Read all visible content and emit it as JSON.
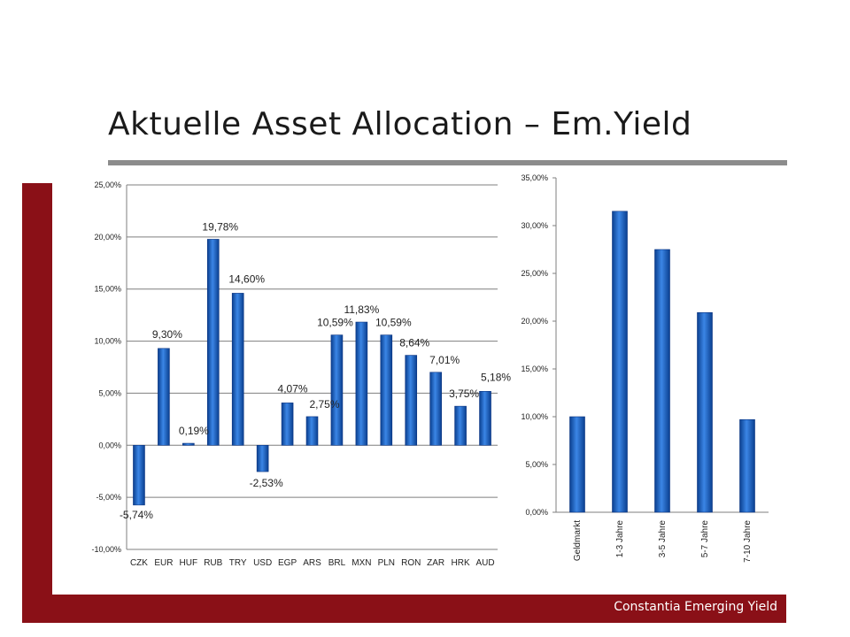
{
  "slide": {
    "title": "Aktuelle Asset Allocation – Em.Yield",
    "footer": "Constantia Emerging Yield",
    "accent_color": "#8a1017",
    "rule_color": "#8c8c8c"
  },
  "chart_data": [
    {
      "type": "bar",
      "title": "",
      "categories": [
        "CZK",
        "EUR",
        "HUF",
        "RUB",
        "TRY",
        "USD",
        "EGP",
        "ARS",
        "BRL",
        "MXN",
        "PLN",
        "RON",
        "ZAR",
        "HRK",
        "AUD"
      ],
      "values": [
        -5.74,
        9.3,
        0.19,
        19.78,
        14.6,
        -2.53,
        4.07,
        2.75,
        10.59,
        11.83,
        10.59,
        8.64,
        7.01,
        3.75,
        5.18
      ],
      "data_labels": [
        "-5,74%",
        "9,30%",
        "0,19%",
        "19,78%",
        "14,60%",
        "-2,53%",
        "4,07%",
        "2,75%",
        "10,59%",
        "11,83%",
        "10,59%",
        "8,64%",
        "7,01%",
        "3,75%",
        "5,18%"
      ],
      "ylim": [
        -10,
        25
      ],
      "yticks": [
        -10,
        -5,
        0,
        5,
        10,
        15,
        20,
        25
      ],
      "ytick_labels": [
        "-10,00%",
        "-5,00%",
        "0,00%",
        "5,00%",
        "10,00%",
        "15,00%",
        "20,00%",
        "25,00%"
      ],
      "grid": true,
      "bar_color": "#1a63c6"
    },
    {
      "type": "bar",
      "title": "",
      "categories": [
        "Geldmarkt",
        "1-3 Jahre",
        "3-5 Jahre",
        "5-7 Jahre",
        "7-10 Jahre"
      ],
      "values": [
        10.0,
        31.5,
        27.5,
        20.9,
        9.7
      ],
      "ylim": [
        0,
        35
      ],
      "yticks": [
        0,
        5,
        10,
        15,
        20,
        25,
        30,
        35
      ],
      "ytick_labels": [
        "0,00%",
        "5,00%",
        "10,00%",
        "15,00%",
        "20,00%",
        "25,00%",
        "30,00%",
        "35,00%"
      ],
      "grid": false,
      "bar_color": "#1a63c6"
    }
  ]
}
